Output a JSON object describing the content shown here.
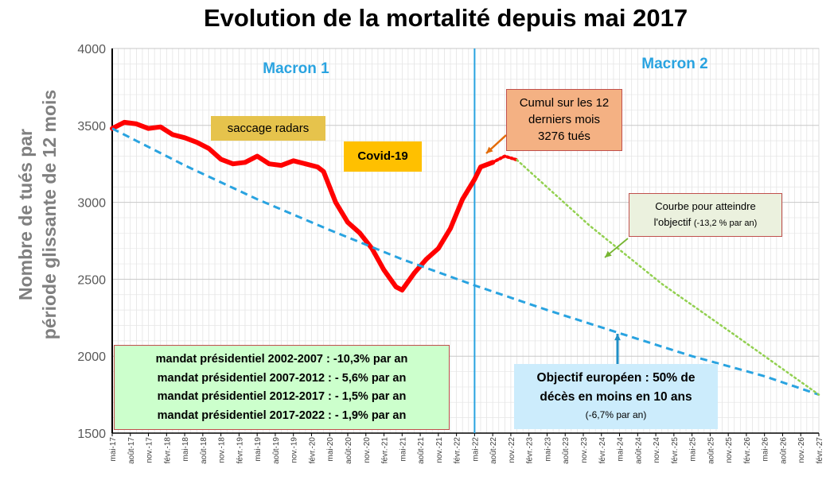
{
  "chart_data": {
    "type": "line",
    "title": "Evolution de la mortalité depuis mai 2017",
    "ylabel_line1": "Nombre de tués par",
    "ylabel_line2": "période  glissante de 12 mois",
    "ylim": [
      1500,
      4000
    ],
    "yticks": [
      1500,
      2000,
      2500,
      3000,
      3500,
      4000
    ],
    "x_start": "2017-05",
    "x_end": "2027-02",
    "x_tick_labels": [
      "mai-17",
      "août-17",
      "nov.-17",
      "févr.-18",
      "mai-18",
      "août-18",
      "nov.-18",
      "févr.-19",
      "mai-19",
      "août-19",
      "nov.-19",
      "févr.-20",
      "mai-20",
      "août-20",
      "nov.-20",
      "févr.-21",
      "mai-21",
      "août-21",
      "nov.-21",
      "févr.-22",
      "mai-22",
      "août-22",
      "nov.-22",
      "févr.-23",
      "mai-23",
      "août-23",
      "nov.-23",
      "févr.-24",
      "mai-24",
      "août-24",
      "nov.-24",
      "févr.-25",
      "mai-25",
      "août-25",
      "nov.-25",
      "févr.-26",
      "mai-26",
      "août-26",
      "nov.-26",
      "févr.-27"
    ],
    "grid": true,
    "series": [
      {
        "name": "",
        "style": "solid",
        "color": "#ff0000",
        "points": [
          [
            "2017-05",
            3480
          ],
          [
            "2017-07",
            3520
          ],
          [
            "2017-09",
            3510
          ],
          [
            "2017-11",
            3480
          ],
          [
            "2018-01",
            3490
          ],
          [
            "2018-03",
            3440
          ],
          [
            "2018-05",
            3420
          ],
          [
            "2018-07",
            3390
          ],
          [
            "2018-09",
            3350
          ],
          [
            "2018-11",
            3280
          ],
          [
            "2019-01",
            3250
          ],
          [
            "2019-03",
            3260
          ],
          [
            "2019-05",
            3300
          ],
          [
            "2019-07",
            3250
          ],
          [
            "2019-09",
            3240
          ],
          [
            "2019-11",
            3270
          ],
          [
            "2020-01",
            3250
          ],
          [
            "2020-03",
            3230
          ],
          [
            "2020-04",
            3200
          ],
          [
            "2020-06",
            3000
          ],
          [
            "2020-08",
            2870
          ],
          [
            "2020-10",
            2800
          ],
          [
            "2020-12",
            2700
          ],
          [
            "2021-02",
            2560
          ],
          [
            "2021-04",
            2450
          ],
          [
            "2021-05",
            2430
          ],
          [
            "2021-07",
            2540
          ],
          [
            "2021-09",
            2630
          ],
          [
            "2021-11",
            2700
          ],
          [
            "2022-01",
            2830
          ],
          [
            "2022-03",
            3020
          ],
          [
            "2022-05",
            3150
          ],
          [
            "2022-06",
            3230
          ],
          [
            "2022-08",
            3260
          ]
        ]
      },
      {
        "name": "",
        "style": "dotted",
        "color": "#ff0000",
        "points": [
          [
            "2022-08",
            3260
          ],
          [
            "2022-10",
            3300
          ],
          [
            "2022-12",
            3276
          ]
        ]
      },
      {
        "name": "",
        "style": "dashed",
        "color": "#29a3e0",
        "points": [
          [
            "2017-05",
            3480
          ],
          [
            "2018-05",
            3240
          ],
          [
            "2019-05",
            3020
          ],
          [
            "2020-05",
            2820
          ],
          [
            "2021-05",
            2630
          ],
          [
            "2022-05",
            2460
          ],
          [
            "2023-05",
            2300
          ],
          [
            "2024-05",
            2150
          ],
          [
            "2025-05",
            2000
          ],
          [
            "2026-05",
            1870
          ],
          [
            "2027-02",
            1750
          ]
        ]
      },
      {
        "name": "",
        "style": "dotted",
        "color": "#92d050",
        "points": [
          [
            "2022-12",
            3276
          ],
          [
            "2023-12",
            2850
          ],
          [
            "2024-12",
            2470
          ],
          [
            "2025-12",
            2140
          ],
          [
            "2027-02",
            1750
          ]
        ]
      }
    ],
    "vertical_line_date": "2022-05",
    "section_labels": [
      "Macron 1",
      "Macron 2"
    ],
    "annotations": {
      "saccage": "saccage radars",
      "covid": "Covid-19",
      "cumul": [
        "Cumul sur les 12",
        "derniers mois",
        "3276 tués"
      ],
      "courbe_line1": "Courbe   pour atteindre",
      "courbe_line2_main": "l'objectif",
      "courbe_line2_small": "(-13,2 % par an)",
      "mandats": [
        "mandat présidentiel 2002-2007 : -10,3% par an",
        "mandat présidentiel 2007-2012 : - 5,6% par an",
        "mandat présidentiel 2012-2017 : - 1,5% par an",
        "mandat présidentiel 2017-2022 : - 1,9% par an"
      ],
      "objectif_line1": "Objectif européen : 50% de",
      "objectif_line2": "décès en moins en 10 ans",
      "objectif_line3": "(-6,7% par an)"
    },
    "colors": {
      "main_line": "#ff0000",
      "blue_line": "#29a3e0",
      "green_line": "#92d050",
      "section_label": "#29a3e0",
      "saccage_bg": "#e6c34c",
      "covid_bg": "#ffc000",
      "cumul_bg": "#f4b183",
      "courbe_bg": "#ebf1de",
      "mandats_bg": "#ccffcc",
      "objectif_bg": "#ccecfc",
      "arrow_orange": "#e36c0a",
      "arrow_green": "#76b531",
      "arrow_blue": "#1f8fc6"
    }
  }
}
